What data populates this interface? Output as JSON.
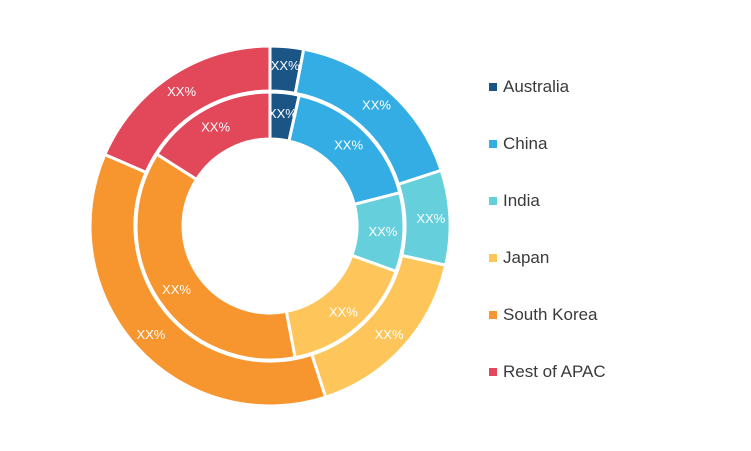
{
  "chart_data": {
    "type": "pie",
    "title": "",
    "categories": [
      "Australia",
      "China",
      "India",
      "Japan",
      "South Korea",
      "Rest of APAC"
    ],
    "colors": [
      "#1a5585",
      "#33ade3",
      "#65cfdb",
      "#fec65a",
      "#f7962f",
      "#e2485a"
    ],
    "series": [
      {
        "values": [
          3,
          17,
          8.5,
          16.5,
          36.5,
          18.5
        ],
        "labels": [
          "XX%",
          "XX%",
          "XX%",
          "XX%",
          "XX%",
          "XX%"
        ]
      },
      {
        "values": [
          3.5,
          17.5,
          9.5,
          16.5,
          37,
          16
        ],
        "labels": [
          "XX%",
          "XX%",
          "XX%",
          "XX%",
          "XX%",
          "XX%"
        ]
      }
    ],
    "legend": {
      "position": "right",
      "entries": [
        "Australia",
        "China",
        "India",
        "Japan",
        "South Korea",
        "Rest of APAC"
      ]
    }
  }
}
